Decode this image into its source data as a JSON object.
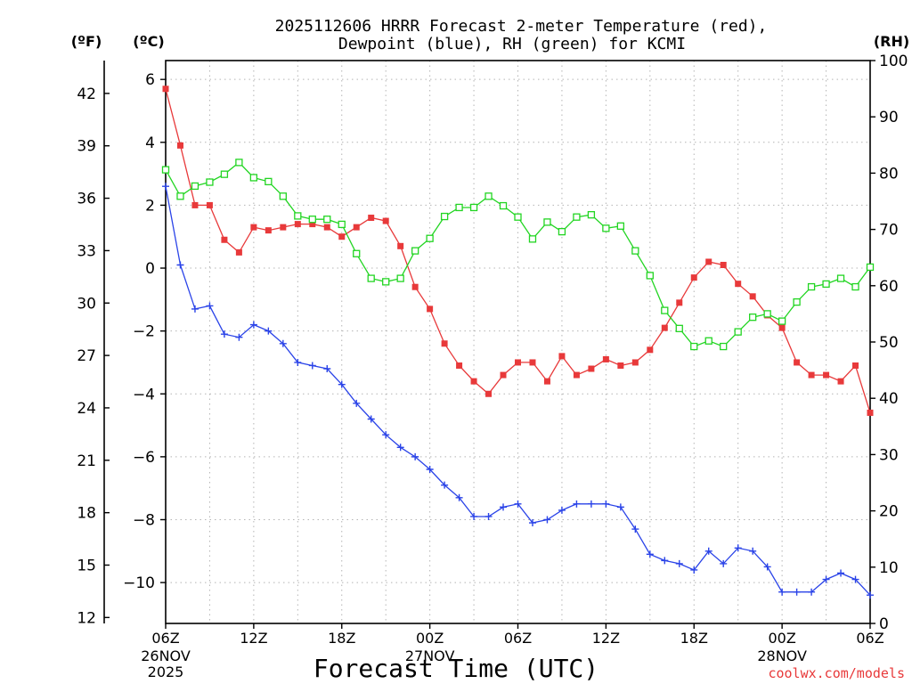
{
  "chart_data": {
    "type": "line",
    "title_line1": "2025112606 HRRR Forecast 2-meter Temperature (red),",
    "title_line2": "Dewpoint (blue), RH (green) for KCMI",
    "xlabel": "Forecast Time (UTC)",
    "units": {
      "fahrenheit": "(ºF)",
      "celsius": "(ºC)",
      "rh": "(RH)"
    },
    "x_hours": [
      0,
      1,
      2,
      3,
      4,
      5,
      6,
      7,
      8,
      9,
      10,
      11,
      12,
      13,
      14,
      15,
      16,
      17,
      18,
      19,
      20,
      21,
      22,
      23,
      24,
      25,
      26,
      27,
      28,
      29,
      30,
      31,
      32,
      33,
      34,
      35,
      36,
      37,
      38,
      39,
      40,
      41,
      42,
      43,
      44,
      45,
      46,
      47,
      48
    ],
    "x_ticks": [
      {
        "hour": 0,
        "label": "06Z",
        "date": "26NOV",
        "year": "2025"
      },
      {
        "hour": 6,
        "label": "12Z"
      },
      {
        "hour": 12,
        "label": "18Z"
      },
      {
        "hour": 18,
        "label": "00Z",
        "date": "27NOV"
      },
      {
        "hour": 24,
        "label": "06Z"
      },
      {
        "hour": 30,
        "label": "12Z"
      },
      {
        "hour": 36,
        "label": "18Z"
      },
      {
        "hour": 42,
        "label": "00Z",
        "date": "28NOV"
      },
      {
        "hour": 48,
        "label": "06Z"
      }
    ],
    "y_left_c": {
      "ticks": [
        6,
        4,
        2,
        0,
        -2,
        -4,
        -6,
        -8,
        -10
      ],
      "labels": [
        "6",
        "4",
        "2",
        "0",
        "−2",
        "−4",
        "−6",
        "−8",
        "−10"
      ],
      "range": [
        -11.3,
        6.6
      ]
    },
    "y_left_f": {
      "ticks": [
        42,
        39,
        36,
        33,
        30,
        27,
        24,
        21,
        18,
        15,
        12
      ],
      "labels": [
        "42",
        "39",
        "36",
        "33",
        "30",
        "27",
        "24",
        "21",
        "18",
        "15",
        "12"
      ]
    },
    "y_right_rh": {
      "ticks": [
        0,
        10,
        20,
        30,
        40,
        50,
        60,
        70,
        80,
        90,
        100
      ],
      "labels": [
        "0",
        "10",
        "20",
        "30",
        "40",
        "50",
        "60",
        "70",
        "80",
        "90",
        "100"
      ],
      "range": [
        0,
        100
      ]
    },
    "series": [
      {
        "name": "2-meter Temperature",
        "axis": "celsius",
        "color": "#e8393a",
        "marker": "filled-square",
        "values": [
          5.7,
          3.9,
          2.0,
          2.0,
          0.9,
          0.5,
          1.3,
          1.2,
          1.3,
          1.4,
          1.4,
          1.3,
          1.0,
          1.3,
          1.6,
          1.5,
          0.7,
          -0.6,
          -1.3,
          -2.4,
          -3.1,
          -3.6,
          -4.0,
          -3.4,
          -3.0,
          -3.0,
          -3.6,
          -2.8,
          -3.4,
          -3.2,
          -2.9,
          -3.1,
          -3.0,
          -2.6,
          -1.9,
          -1.1,
          -0.3,
          0.2,
          0.1,
          -0.5,
          -0.9,
          -1.5,
          -1.9,
          -3.0,
          -3.4,
          -3.4,
          -3.6,
          -3.1,
          -4.6
        ]
      },
      {
        "name": "Dewpoint",
        "axis": "celsius",
        "color": "#2a43e8",
        "marker": "plus",
        "values": [
          2.6,
          0.1,
          -1.3,
          -1.2,
          -2.1,
          -2.2,
          -1.8,
          -2.0,
          -2.4,
          -3.0,
          -3.1,
          -3.2,
          -3.7,
          -4.3,
          -4.8,
          -5.3,
          -5.7,
          -6.0,
          -6.4,
          -6.9,
          -7.3,
          -7.9,
          -7.9,
          -7.6,
          -7.5,
          -8.1,
          -8.0,
          -7.7,
          -7.5,
          -7.5,
          -7.5,
          -7.6,
          -8.3,
          -9.1,
          -9.3,
          -9.4,
          -9.6,
          -9.0,
          -9.4,
          -8.9,
          -9.0,
          -9.5,
          -10.3,
          -10.3,
          -10.3,
          -9.9,
          -9.7,
          -9.9,
          -10.4
        ]
      },
      {
        "name": "Relative Humidity",
        "axis": "rh",
        "color": "#22d522",
        "marker": "open-square",
        "values": [
          80.6,
          75.9,
          77.7,
          78.4,
          79.8,
          81.9,
          79.2,
          78.5,
          75.9,
          72.4,
          71.8,
          71.8,
          70.9,
          65.7,
          61.3,
          60.7,
          61.3,
          66.2,
          68.4,
          72.3,
          73.9,
          73.9,
          75.9,
          74.2,
          72.2,
          68.3,
          71.3,
          69.6,
          72.2,
          72.6,
          70.2,
          70.6,
          66.2,
          61.8,
          55.6,
          52.4,
          49.2,
          50.2,
          49.2,
          51.8,
          54.4,
          55.0,
          53.7,
          57.1,
          59.8,
          60.3,
          61.3,
          59.8,
          63.3
        ]
      }
    ]
  },
  "credit": "coolwx.com/models"
}
